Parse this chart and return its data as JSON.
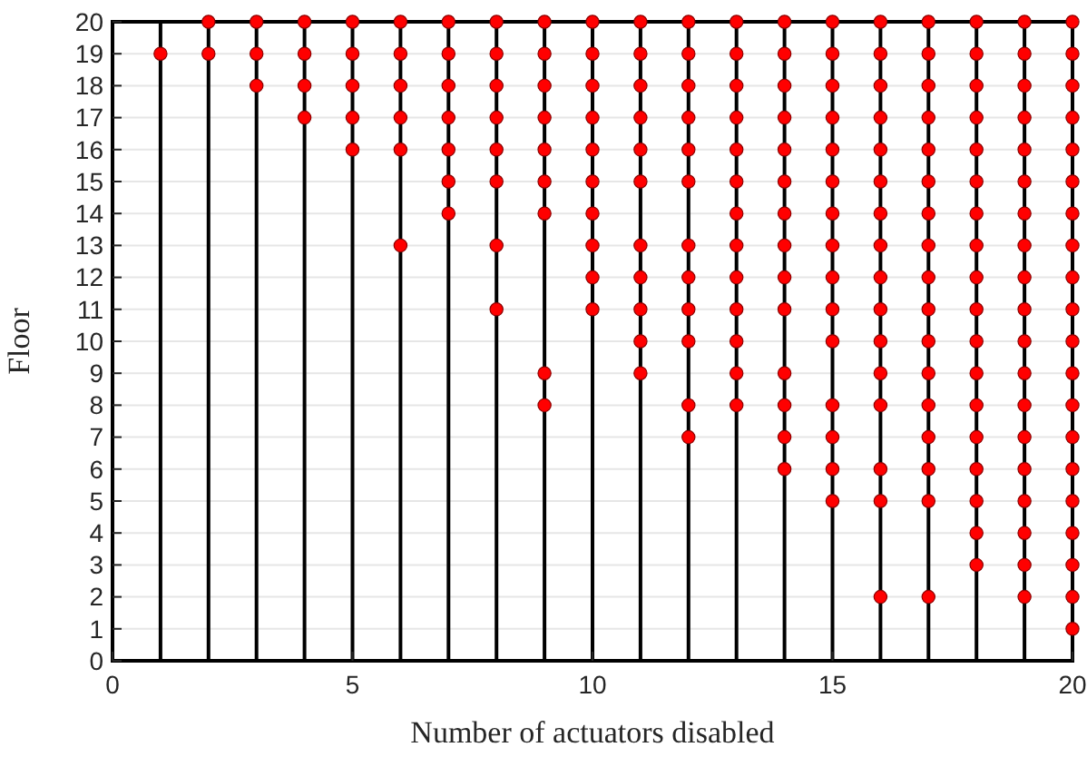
{
  "chart_data": {
    "type": "scatter",
    "xlabel": "Number of actuators disabled",
    "ylabel": "Floor",
    "xlim": [
      0,
      20
    ],
    "xticks": [
      0,
      5,
      10,
      15,
      20
    ],
    "ylim": [
      0,
      20
    ],
    "yticks": [
      0,
      1,
      2,
      3,
      4,
      5,
      6,
      7,
      8,
      9,
      10,
      11,
      12,
      13,
      14,
      15,
      16,
      17,
      18,
      19,
      20
    ],
    "grid": "y",
    "marker": "circle",
    "ref_lines": [
      {
        "axis": "x",
        "value": 1,
        "color": "#000000"
      },
      {
        "axis": "x",
        "value": 2,
        "color": "#000000"
      },
      {
        "axis": "x",
        "value": 3,
        "color": "#000000"
      },
      {
        "axis": "x",
        "value": 4,
        "color": "#000000"
      },
      {
        "axis": "x",
        "value": 5,
        "color": "#000000"
      },
      {
        "axis": "x",
        "value": 6,
        "color": "#000000"
      },
      {
        "axis": "x",
        "value": 7,
        "color": "#000000"
      },
      {
        "axis": "x",
        "value": 8,
        "color": "#000000"
      },
      {
        "axis": "x",
        "value": 9,
        "color": "#000000"
      },
      {
        "axis": "x",
        "value": 10,
        "color": "#000000"
      },
      {
        "axis": "x",
        "value": 11,
        "color": "#000000"
      },
      {
        "axis": "x",
        "value": 12,
        "color": "#000000"
      },
      {
        "axis": "x",
        "value": 13,
        "color": "#000000"
      },
      {
        "axis": "x",
        "value": 14,
        "color": "#000000"
      },
      {
        "axis": "x",
        "value": 15,
        "color": "#000000"
      },
      {
        "axis": "x",
        "value": 16,
        "color": "#000000"
      },
      {
        "axis": "x",
        "value": 17,
        "color": "#000000"
      },
      {
        "axis": "x",
        "value": 18,
        "color": "#000000"
      },
      {
        "axis": "x",
        "value": 19,
        "color": "#000000"
      }
    ],
    "series": [
      {
        "color": "#ff0000",
        "x": [
          1,
          2,
          2,
          3,
          3,
          3,
          4,
          4,
          4,
          4,
          5,
          5,
          5,
          5,
          5,
          6,
          6,
          6,
          6,
          6,
          6,
          7,
          7,
          7,
          7,
          7,
          7,
          7,
          8,
          8,
          8,
          8,
          8,
          8,
          8,
          8,
          9,
          9,
          9,
          9,
          9,
          9,
          9,
          9,
          9,
          10,
          10,
          10,
          10,
          10,
          10,
          10,
          10,
          10,
          10,
          11,
          11,
          11,
          11,
          11,
          11,
          11,
          11,
          11,
          11,
          11,
          12,
          12,
          12,
          12,
          12,
          12,
          12,
          12,
          12,
          12,
          12,
          12,
          13,
          13,
          13,
          13,
          13,
          13,
          13,
          13,
          13,
          13,
          13,
          13,
          13,
          14,
          14,
          14,
          14,
          14,
          14,
          14,
          14,
          14,
          14,
          14,
          14,
          14,
          14,
          15,
          15,
          15,
          15,
          15,
          15,
          15,
          15,
          15,
          15,
          15,
          15,
          15,
          15,
          15,
          16,
          16,
          16,
          16,
          16,
          16,
          16,
          16,
          16,
          16,
          16,
          16,
          16,
          16,
          16,
          16,
          17,
          17,
          17,
          17,
          17,
          17,
          17,
          17,
          17,
          17,
          17,
          17,
          17,
          17,
          17,
          17,
          17,
          18,
          18,
          18,
          18,
          18,
          18,
          18,
          18,
          18,
          18,
          18,
          18,
          18,
          18,
          18,
          18,
          18,
          18,
          19,
          19,
          19,
          19,
          19,
          19,
          19,
          19,
          19,
          19,
          19,
          19,
          19,
          19,
          19,
          19,
          19,
          19,
          19,
          20,
          20,
          20,
          20,
          20,
          20,
          20,
          20,
          20,
          20,
          20,
          20,
          20,
          20,
          20,
          20,
          20,
          20,
          20,
          20
        ],
        "values": [
          19,
          20,
          19,
          20,
          19,
          18,
          20,
          19,
          18,
          17,
          20,
          19,
          18,
          17,
          16,
          20,
          19,
          18,
          17,
          16,
          13,
          20,
          19,
          18,
          17,
          16,
          15,
          14,
          20,
          19,
          18,
          17,
          16,
          15,
          13,
          11,
          20,
          19,
          18,
          17,
          16,
          15,
          14,
          9,
          8,
          20,
          19,
          18,
          17,
          16,
          15,
          14,
          13,
          12,
          11,
          20,
          19,
          18,
          17,
          16,
          15,
          13,
          12,
          11,
          10,
          9,
          20,
          19,
          18,
          17,
          16,
          15,
          13,
          12,
          11,
          10,
          8,
          7,
          20,
          19,
          18,
          17,
          16,
          15,
          14,
          13,
          12,
          11,
          10,
          9,
          8,
          20,
          19,
          18,
          17,
          16,
          15,
          14,
          13,
          12,
          11,
          9,
          8,
          7,
          6,
          20,
          19,
          18,
          17,
          16,
          15,
          14,
          13,
          12,
          11,
          10,
          8,
          7,
          6,
          5,
          20,
          19,
          18,
          17,
          16,
          15,
          14,
          13,
          12,
          11,
          10,
          9,
          8,
          6,
          5,
          2,
          20,
          19,
          18,
          17,
          16,
          15,
          14,
          13,
          12,
          11,
          10,
          9,
          8,
          7,
          6,
          5,
          2,
          20,
          19,
          18,
          17,
          16,
          15,
          14,
          13,
          12,
          11,
          10,
          9,
          8,
          7,
          6,
          5,
          4,
          3,
          20,
          19,
          18,
          17,
          16,
          15,
          14,
          13,
          12,
          11,
          10,
          9,
          8,
          7,
          6,
          5,
          4,
          3,
          2,
          20,
          19,
          18,
          17,
          16,
          15,
          14,
          13,
          12,
          11,
          10,
          9,
          8,
          7,
          6,
          5,
          4,
          3,
          2,
          1
        ]
      }
    ]
  }
}
